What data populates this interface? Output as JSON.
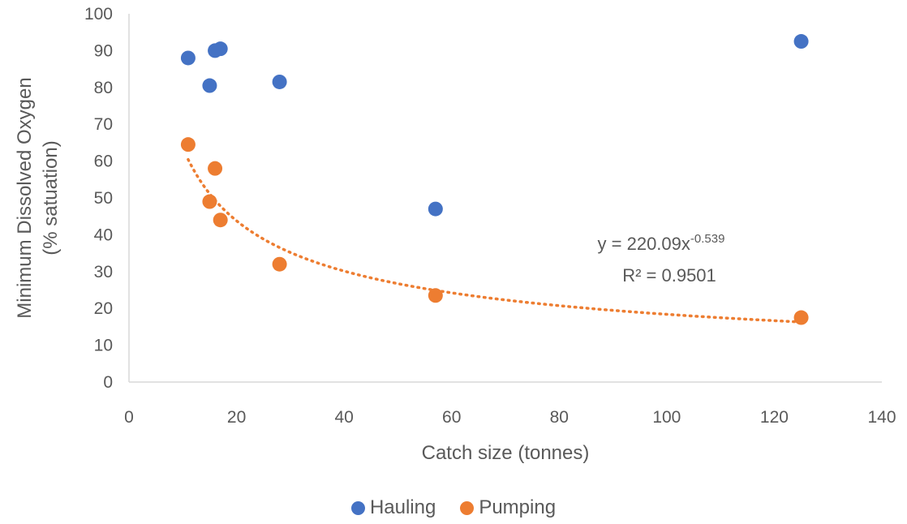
{
  "chart_data": {
    "type": "scatter",
    "title": "",
    "xlabel": "Catch size (tonnes)",
    "ylabel_lines": [
      "Minimum Dissolved Oxygen",
      "(% satuation)"
    ],
    "xlim": [
      0,
      140
    ],
    "ylim": [
      0,
      100
    ],
    "xticks": [
      0,
      20,
      40,
      60,
      80,
      100,
      120,
      140
    ],
    "yticks": [
      0,
      10,
      20,
      30,
      40,
      50,
      60,
      70,
      80,
      90,
      100
    ],
    "grid": false,
    "legend_position": "bottom",
    "series": [
      {
        "name": "Hauling",
        "color": "#4472C4",
        "points": [
          [
            11,
            88
          ],
          [
            15,
            80.5
          ],
          [
            16,
            90
          ],
          [
            17,
            90.5
          ],
          [
            28,
            81.5
          ],
          [
            57,
            47
          ],
          [
            125,
            92.5
          ]
        ]
      },
      {
        "name": "Pumping",
        "color": "#ED7D31",
        "points": [
          [
            11,
            64.5
          ],
          [
            15,
            49
          ],
          [
            16,
            58
          ],
          [
            17,
            44
          ],
          [
            28,
            32
          ],
          [
            57,
            23.5
          ],
          [
            125,
            17.5
          ]
        ]
      }
    ],
    "trendline": {
      "series": "Pumping",
      "type": "power",
      "a": 220.09,
      "b": -0.539,
      "x_range": [
        11,
        125
      ],
      "color": "#ED7D31",
      "style": "dotted",
      "equation_base": "y = 220.09x",
      "equation_exp": "-0.539",
      "r2_label": "R² = 0.9501"
    }
  }
}
